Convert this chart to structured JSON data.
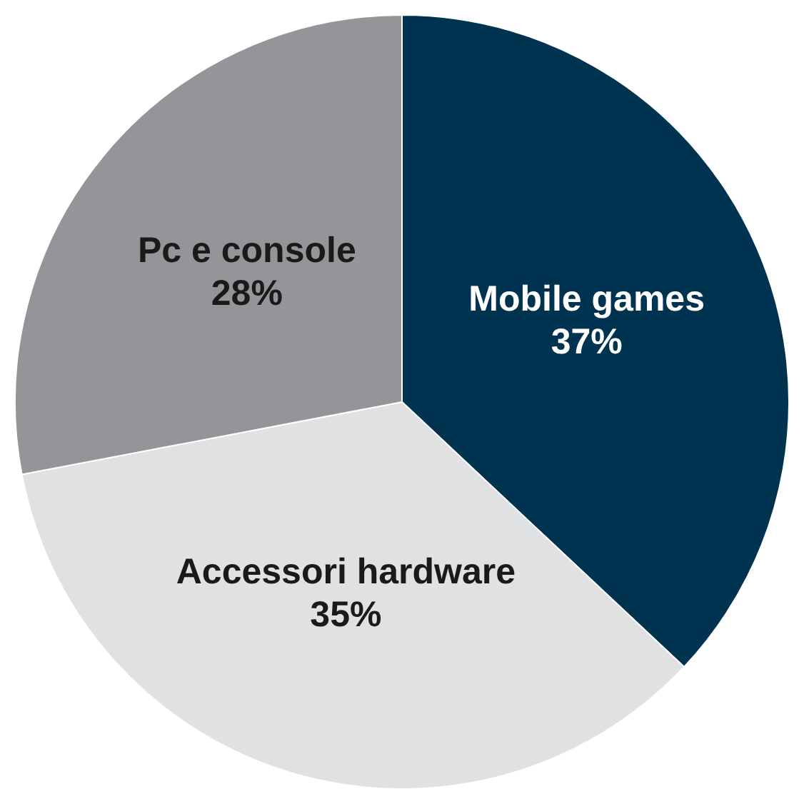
{
  "chart_data": {
    "type": "pie",
    "categories": [
      "Mobile games",
      "Accessori hardware",
      "Pc e console"
    ],
    "values": [
      37,
      35,
      28
    ],
    "colors": [
      "#003350",
      "#e0e1e3",
      "#939598"
    ],
    "value_labels": [
      "37%",
      "35%",
      "28%"
    ],
    "legend": false
  }
}
